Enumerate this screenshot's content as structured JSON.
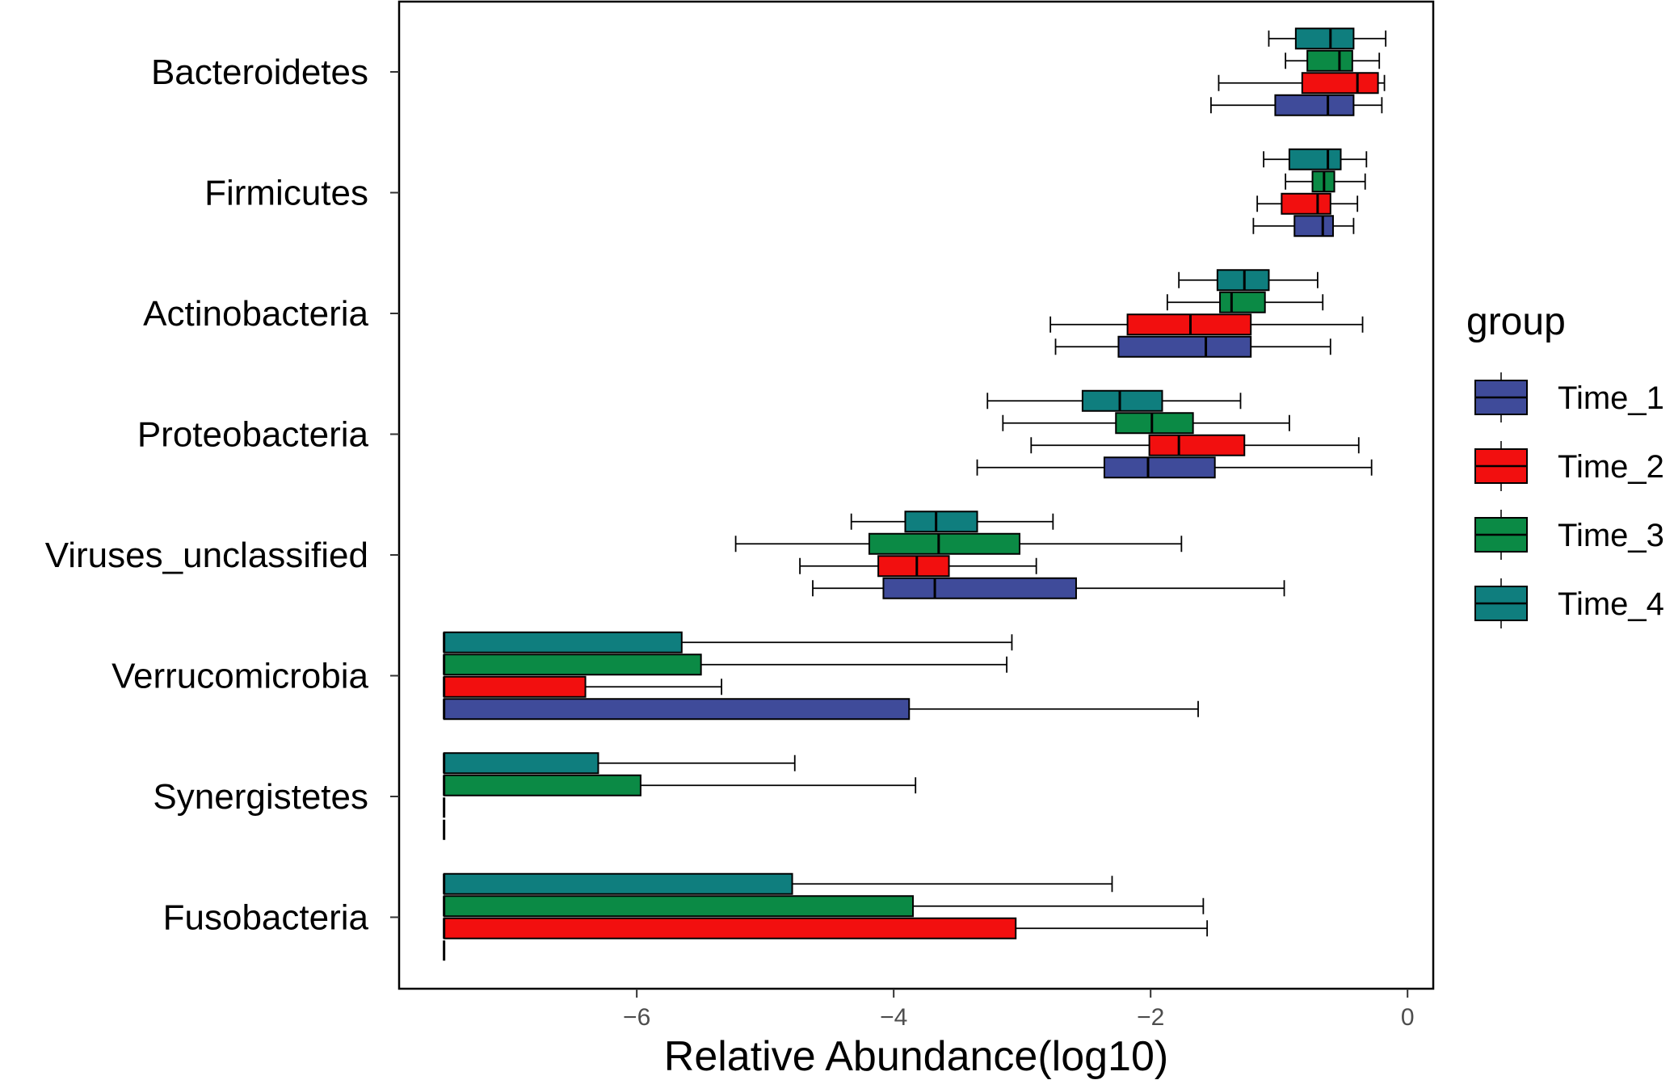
{
  "chart_data": {
    "type": "boxplot",
    "orientation": "horizontal",
    "xlabel": "Relative Abundance(log10)",
    "xlim": [
      -7.85,
      0.2
    ],
    "x_ticks": [
      {
        "value": -6,
        "label": "−6"
      },
      {
        "value": -4,
        "label": "−4"
      },
      {
        "value": -2,
        "label": "−2"
      },
      {
        "value": 0,
        "label": "0"
      }
    ],
    "floor_value": -7.5,
    "categories": [
      "Bacteroidetes",
      "Firmicutes",
      "Actinobacteria",
      "Proteobacteria",
      "Viruses_unclassified",
      "Verrucomicrobia",
      "Synergistetes",
      "Fusobacteria"
    ],
    "legend": {
      "title": "group",
      "position": "right",
      "items": [
        {
          "name": "Time_1",
          "color": "#3F4B9A"
        },
        {
          "name": "Time_2",
          "color": "#F20F0F"
        },
        {
          "name": "Time_3",
          "color": "#0B8A45"
        },
        {
          "name": "Time_4",
          "color": "#0F7E7E"
        }
      ]
    },
    "series": [
      {
        "name": "Time_1",
        "color": "#3F4B9A",
        "boxes": [
          {
            "min": -1.53,
            "q1": -1.03,
            "median": -0.62,
            "q3": -0.42,
            "max": -0.2
          },
          {
            "min": -1.2,
            "q1": -0.88,
            "median": -0.66,
            "q3": -0.58,
            "max": -0.42
          },
          {
            "min": -2.74,
            "q1": -2.25,
            "median": -1.57,
            "q3": -1.22,
            "max": -0.6
          },
          {
            "min": -3.35,
            "q1": -2.36,
            "median": -2.02,
            "q3": -1.5,
            "max": -0.28
          },
          {
            "min": -4.63,
            "q1": -4.08,
            "median": -3.68,
            "q3": -2.58,
            "max": -0.96
          },
          {
            "min": -7.5,
            "q1": -7.5,
            "median": -7.5,
            "q3": -3.88,
            "max": -1.63
          },
          {
            "min": -7.5,
            "q1": -7.5,
            "median": -7.5,
            "q3": -7.5,
            "max": -7.5
          },
          {
            "min": -7.5,
            "q1": -7.5,
            "median": -7.5,
            "q3": -7.5,
            "max": -7.5
          }
        ]
      },
      {
        "name": "Time_2",
        "color": "#F20F0F",
        "boxes": [
          {
            "min": -1.47,
            "q1": -0.82,
            "median": -0.39,
            "q3": -0.23,
            "max": -0.18
          },
          {
            "min": -1.17,
            "q1": -0.98,
            "median": -0.7,
            "q3": -0.6,
            "max": -0.39
          },
          {
            "min": -2.78,
            "q1": -2.18,
            "median": -1.69,
            "q3": -1.22,
            "max": -0.35
          },
          {
            "min": -2.93,
            "q1": -2.01,
            "median": -1.78,
            "q3": -1.27,
            "max": -0.38
          },
          {
            "min": -4.73,
            "q1": -4.12,
            "median": -3.82,
            "q3": -3.57,
            "max": -2.89
          },
          {
            "min": -7.5,
            "q1": -7.5,
            "median": -7.5,
            "q3": -6.4,
            "max": -5.34
          },
          {
            "min": -7.5,
            "q1": -7.5,
            "median": -7.5,
            "q3": -7.5,
            "max": -7.5
          },
          {
            "min": -7.5,
            "q1": -7.5,
            "median": -7.5,
            "q3": -3.05,
            "max": -1.56
          }
        ]
      },
      {
        "name": "Time_3",
        "color": "#0B8A45",
        "boxes": [
          {
            "min": -0.95,
            "q1": -0.78,
            "median": -0.53,
            "q3": -0.43,
            "max": -0.22
          },
          {
            "min": -0.95,
            "q1": -0.74,
            "median": -0.65,
            "q3": -0.57,
            "max": -0.33
          },
          {
            "min": -1.87,
            "q1": -1.46,
            "median": -1.37,
            "q3": -1.11,
            "max": -0.66
          },
          {
            "min": -3.15,
            "q1": -2.27,
            "median": -1.99,
            "q3": -1.67,
            "max": -0.92
          },
          {
            "min": -5.23,
            "q1": -4.19,
            "median": -3.65,
            "q3": -3.02,
            "max": -1.76
          },
          {
            "min": -7.5,
            "q1": -7.5,
            "median": -7.5,
            "q3": -5.5,
            "max": -3.12
          },
          {
            "min": -7.5,
            "q1": -7.5,
            "median": -7.5,
            "q3": -5.97,
            "max": -3.83
          },
          {
            "min": -7.5,
            "q1": -7.5,
            "median": -7.5,
            "q3": -3.85,
            "max": -1.59
          }
        ]
      },
      {
        "name": "Time_4",
        "color": "#0F7E7E",
        "boxes": [
          {
            "min": -1.08,
            "q1": -0.87,
            "median": -0.6,
            "q3": -0.42,
            "max": -0.17
          },
          {
            "min": -1.12,
            "q1": -0.92,
            "median": -0.62,
            "q3": -0.52,
            "max": -0.32
          },
          {
            "min": -1.78,
            "q1": -1.48,
            "median": -1.27,
            "q3": -1.08,
            "max": -0.7
          },
          {
            "min": -3.27,
            "q1": -2.53,
            "median": -2.24,
            "q3": -1.91,
            "max": -1.3
          },
          {
            "min": -4.33,
            "q1": -3.91,
            "median": -3.67,
            "q3": -3.35,
            "max": -2.76
          },
          {
            "min": -7.5,
            "q1": -7.5,
            "median": -7.5,
            "q3": -5.65,
            "max": -3.08
          },
          {
            "min": -7.5,
            "q1": -7.5,
            "median": -7.5,
            "q3": -6.3,
            "max": -4.77
          },
          {
            "min": -7.5,
            "q1": -7.5,
            "median": -7.5,
            "q3": -4.79,
            "max": -2.3
          }
        ]
      }
    ]
  }
}
